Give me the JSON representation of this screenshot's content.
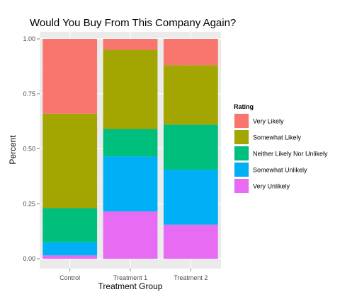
{
  "chart_data": {
    "type": "bar",
    "stacked": true,
    "title": "Would You Buy From This Company Again?",
    "xlabel": "Treatment Group",
    "ylabel": "Percent",
    "ylim": [
      0,
      1
    ],
    "yticks": [
      "0.00",
      "0.25",
      "0.50",
      "0.75",
      "1.00"
    ],
    "categories": [
      "Control",
      "Treatment 1",
      "Treatment 2"
    ],
    "grid": true,
    "legend_position": "right",
    "legend_title": "Rating",
    "stack_order": "bottom-to-top",
    "series": [
      {
        "name": "Very Unlikely",
        "color": "#E76BF3",
        "values": [
          0.015,
          0.215,
          0.155
        ]
      },
      {
        "name": "Somewhat Unlikely",
        "color": "#00B0F6",
        "values": [
          0.06,
          0.25,
          0.25
        ]
      },
      {
        "name": "Neither Likely Nor Unlikely",
        "color": "#00BF7D",
        "values": [
          0.155,
          0.125,
          0.205
        ]
      },
      {
        "name": "Somewhat Likely",
        "color": "#A3A500",
        "values": [
          0.43,
          0.36,
          0.27
        ]
      },
      {
        "name": "Very Likely",
        "color": "#F8766D",
        "values": [
          0.34,
          0.05,
          0.12
        ]
      }
    ],
    "legend_order": [
      "Very Likely",
      "Somewhat Likely",
      "Neither Likely Nor Unlikely",
      "Somewhat Unlikely",
      "Very Unlikely"
    ]
  }
}
